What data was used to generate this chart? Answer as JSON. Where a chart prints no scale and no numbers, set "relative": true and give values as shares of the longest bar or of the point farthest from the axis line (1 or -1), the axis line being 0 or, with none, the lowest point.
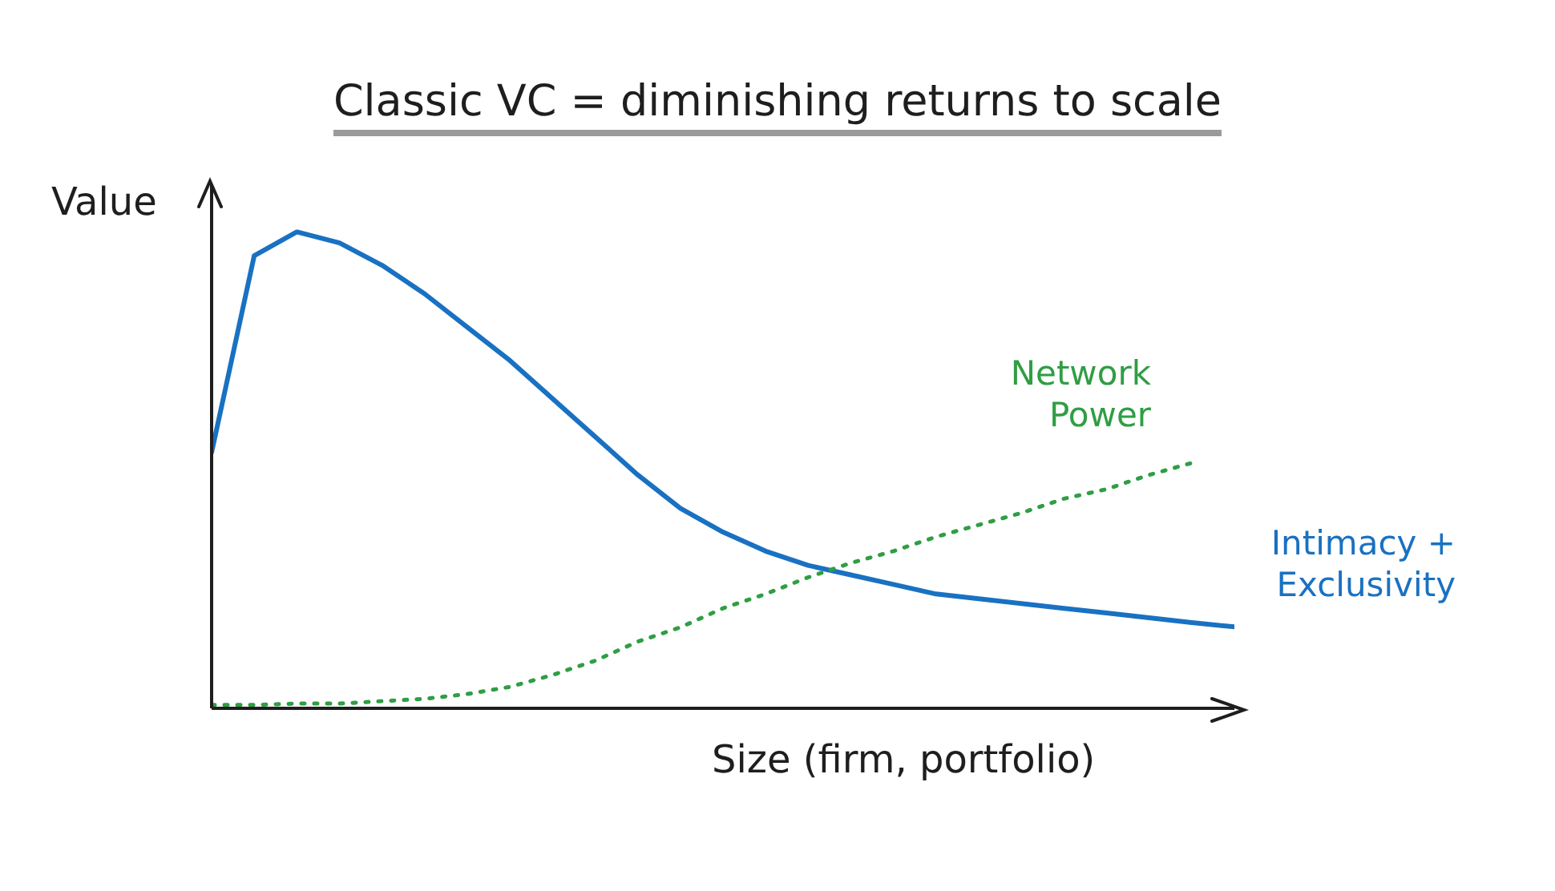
{
  "chart_data": {
    "type": "line",
    "title": "Classic VC = diminishing returns to scale",
    "xlabel": "Size (firm, portfolio)",
    "ylabel": "Value",
    "relative": true,
    "marker": "none",
    "legend": false,
    "grid": false,
    "categories": [
      null,
      null,
      null,
      null,
      null,
      null,
      null,
      null,
      null,
      null,
      null,
      null,
      null,
      null,
      null,
      null,
      null,
      null,
      null,
      null,
      null,
      null,
      null,
      null,
      null
    ],
    "series": [
      {
        "name": "Intimacy + Exclusivity",
        "color": "#1971c2",
        "line_style": "solid",
        "values": [
          0.537,
          0.95,
          1,
          0.977,
          0.93,
          0.87,
          0.8,
          0.73,
          0.65,
          0.57,
          0.49,
          0.42,
          0.37,
          0.33,
          0.3,
          0.28,
          0.26,
          0.24,
          0.23,
          0.22,
          0.21,
          0.2,
          0.19,
          0.18,
          0.171
        ]
      },
      {
        "name": "Network Power",
        "color": "#2f9e44",
        "line_style": "dotted",
        "values": [
          0.007,
          0.007,
          0.01,
          0.01,
          0.015,
          0.02,
          0.03,
          0.045,
          0.07,
          0.1,
          0.14,
          0.17,
          0.21,
          0.24,
          0.275,
          0.305,
          0.33,
          0.36,
          0.385,
          0.41,
          0.44,
          0.46,
          0.49,
          0.515,
          null
        ]
      }
    ]
  }
}
